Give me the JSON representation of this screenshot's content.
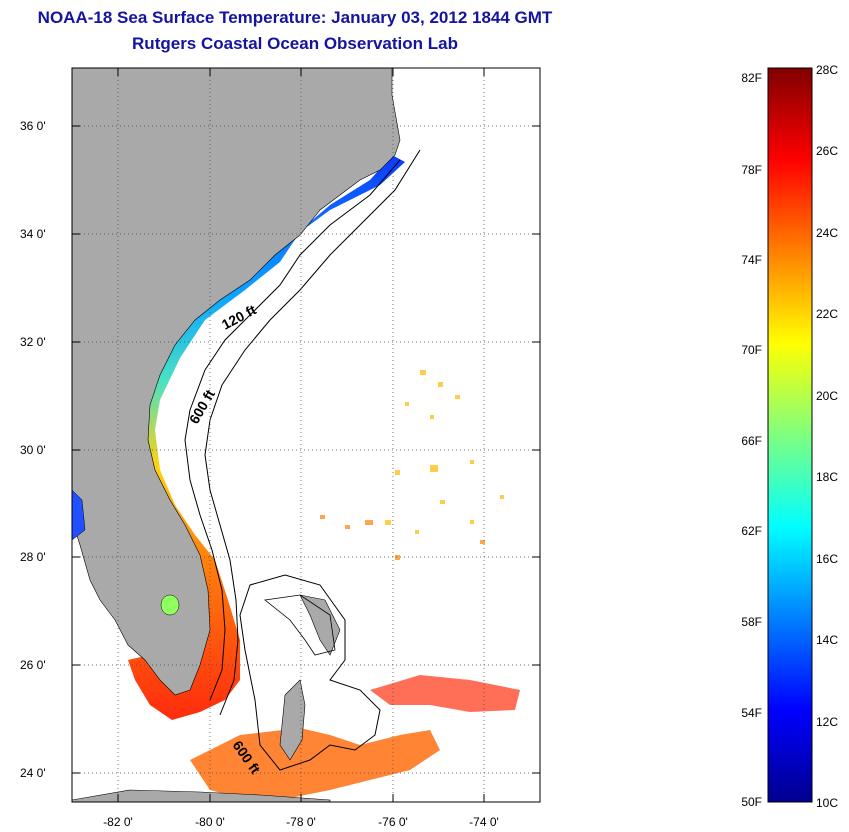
{
  "title": "NOAA-18 Sea Surface Temperature:  January 03, 2012 1844 GMT",
  "subtitle": "Rutgers Coastal Ocean Observation Lab",
  "map": {
    "lat_labels": [
      "36 0'",
      "34 0'",
      "32 0'",
      "30 0'",
      "28 0'",
      "26 0'",
      "24 0'"
    ],
    "lat_values": [
      36,
      34,
      32,
      30,
      28,
      26,
      24
    ],
    "lon_labels": [
      "-82 0'",
      "-80 0'",
      "-78 0'",
      "-76 0'",
      "-74 0'"
    ],
    "lon_values": [
      -82,
      -80,
      -78,
      -76,
      -74
    ],
    "lat_range": [
      23,
      37.1
    ],
    "lon_range": [
      -83,
      -72.9
    ],
    "contour_labels": [
      "120 ft",
      "600 ft",
      "600 ft"
    ],
    "land_color": "#a9a9a9",
    "ocean_color": "#ffffff"
  },
  "colorbar": {
    "f_labels": [
      "82F",
      "78F",
      "74F",
      "70F",
      "66F",
      "62F",
      "58F",
      "54F",
      "50F"
    ],
    "c_labels": [
      "28C",
      "26C",
      "24C",
      "22C",
      "20C",
      "18C",
      "16C",
      "14C",
      "12C",
      "10C"
    ],
    "range_c": [
      10,
      28
    ],
    "colormap": "jet"
  }
}
